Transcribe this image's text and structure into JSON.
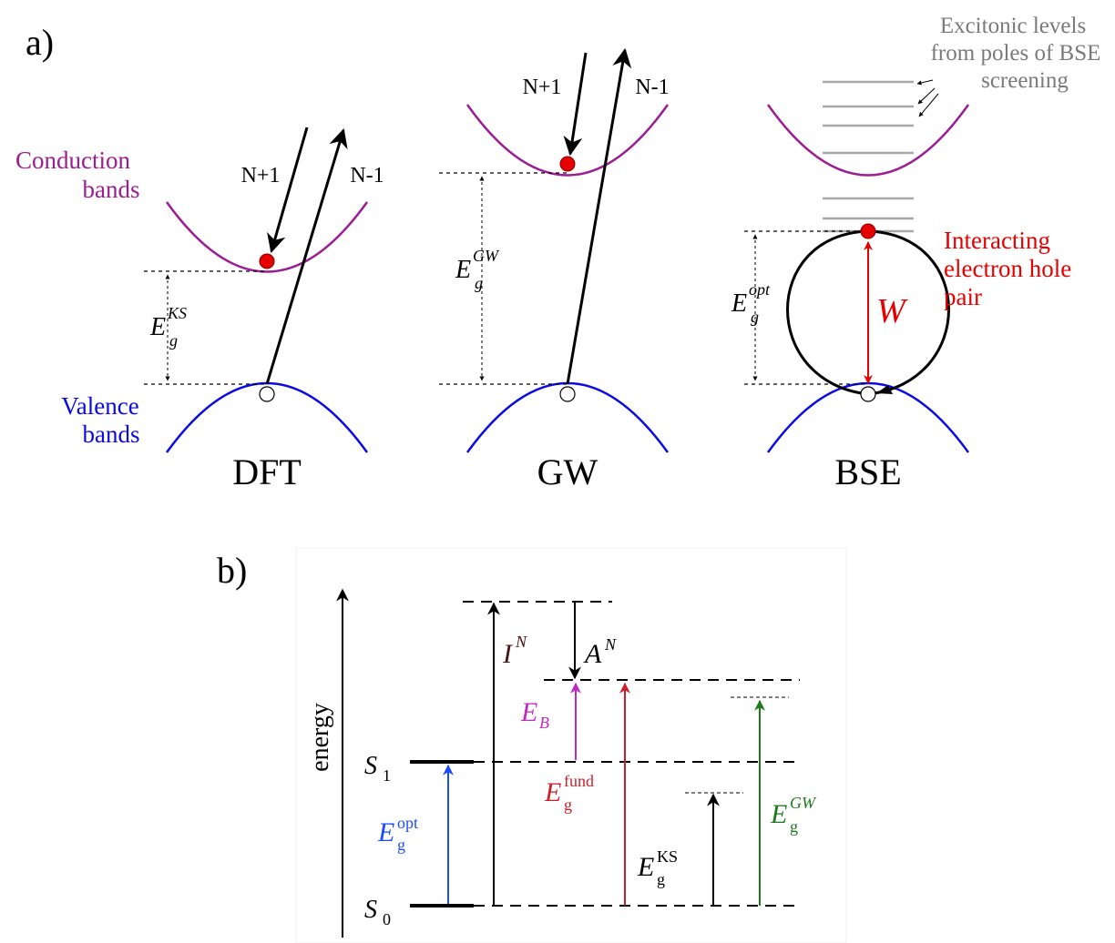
{
  "panel_a": {
    "label": "a)",
    "band_labels": {
      "conduction_line1": "Conduction",
      "conduction_line2": "bands",
      "valence_line1": "Valence",
      "valence_line2": "bands"
    },
    "columns": [
      {
        "name": "DFT",
        "gap_symbol": "E",
        "gap_sub": "g",
        "gap_sup": "KS",
        "arrow_in": "N+1",
        "arrow_out": "N-1"
      },
      {
        "name": "GW",
        "gap_symbol": "E",
        "gap_sub": "g",
        "gap_sup": "GW",
        "arrow_in": "N+1",
        "arrow_out": "N-1"
      },
      {
        "name": "BSE",
        "gap_symbol": "E",
        "gap_sub": "g",
        "gap_sup": "opt"
      }
    ],
    "excitonic_note": [
      "Excitonic levels",
      "from poles of BSE",
      "screening"
    ],
    "interaction_label": "W",
    "pair_note": [
      "Interacting",
      "electron hole",
      "pair"
    ]
  },
  "panel_b": {
    "label": "b)",
    "axis_label": "energy",
    "states": {
      "s1_main": "S",
      "s1_sub": "1",
      "s0_main": "S",
      "s0_sub": "0"
    },
    "ionization": {
      "main": "I",
      "sup": "N"
    },
    "affinity": {
      "main": "A",
      "sup": "N"
    },
    "binding": {
      "main": "E",
      "sub": "B"
    },
    "gaps": [
      {
        "main": "E",
        "sub": "g",
        "sup": "opt"
      },
      {
        "main": "E",
        "sub": "g",
        "sup": "fund"
      },
      {
        "main": "E",
        "sub": "g",
        "sup": "KS"
      },
      {
        "main": "E",
        "sub": "g",
        "sup": "GW"
      }
    ]
  },
  "colors": {
    "conduction": "#9b1c93",
    "valence": "#0a0ae6",
    "electron": "#e60000",
    "interaction": "#e60000",
    "grey_text": "#7a7a7a",
    "exciton_line": "#a8a8a8",
    "opt_arrow": "#1a4bff",
    "fund_arrow": "#cc1f2a",
    "binding_arrow": "#c02ac0",
    "gw_arrow": "#1d7a1d",
    "ion_text": "#4a1010"
  }
}
